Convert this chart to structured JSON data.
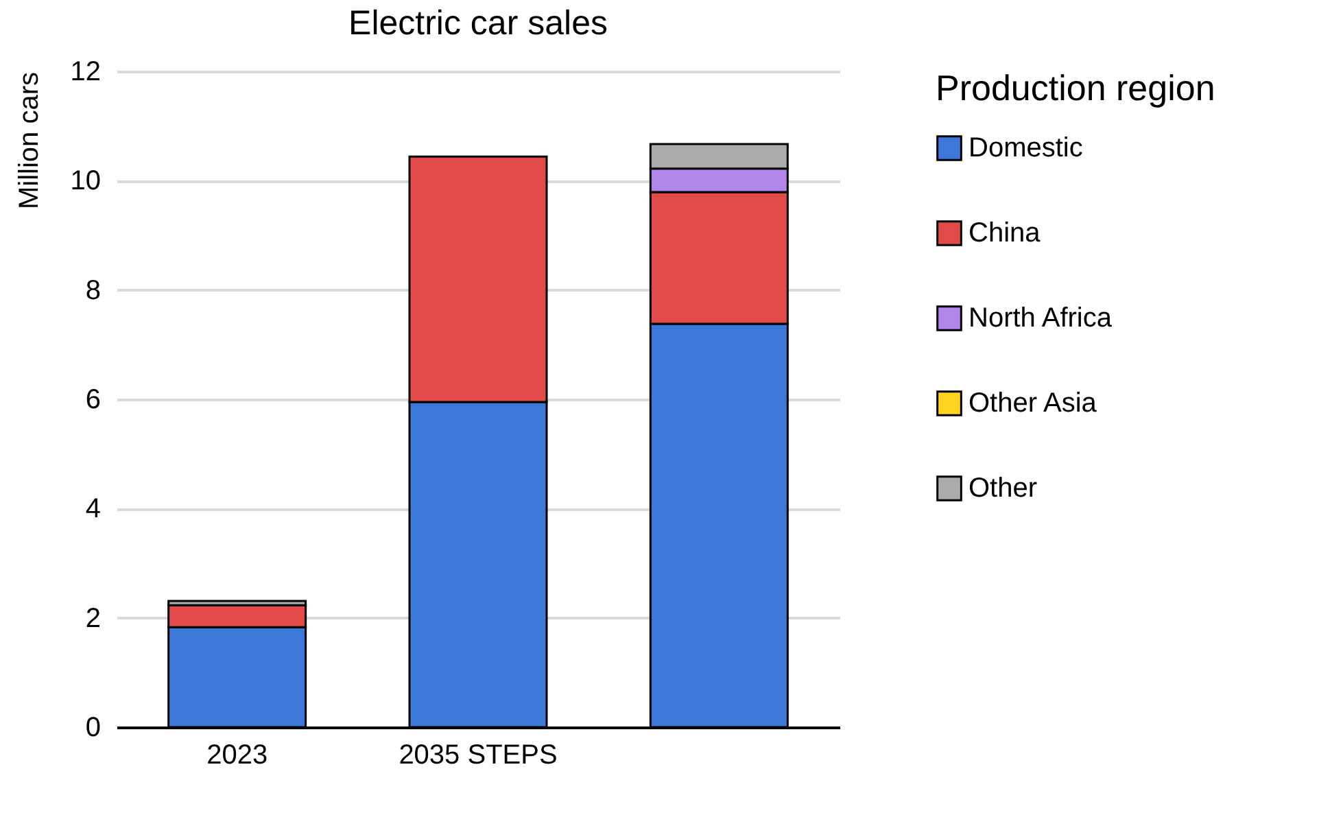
{
  "chart_data": {
    "type": "bar",
    "title": "Electric car sales",
    "ylabel": "Million cars",
    "legend_title": "Production region",
    "categories": [
      "2023",
      "2035 STEPS",
      null
    ],
    "stacked": true,
    "ylim": [
      0,
      12
    ],
    "yticks": [
      0,
      2,
      4,
      6,
      8,
      10,
      12
    ],
    "grid": "y",
    "legend": "right",
    "series": [
      {
        "name": "Domestic",
        "color": "#3c78d8",
        "values": [
          1.83,
          5.95,
          7.38
        ]
      },
      {
        "name": "China",
        "color": "#e34a4a",
        "values": [
          0.4,
          4.49,
          2.41
        ]
      },
      {
        "name": "North Africa",
        "color": "#b185ea",
        "values": [
          null,
          null,
          0.43
        ]
      },
      {
        "name": "Other Asia",
        "color": "#ffd21f",
        "values": [
          null,
          null,
          null
        ]
      },
      {
        "name": "Other",
        "color": "#ababab",
        "values": [
          0.08,
          null,
          0.45
        ]
      }
    ]
  }
}
